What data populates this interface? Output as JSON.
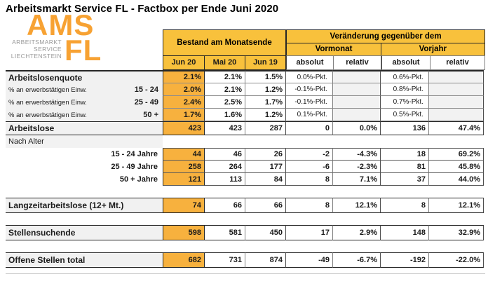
{
  "title": "Arbeitsmarkt Service FL - Factbox per Ende Juni 2020",
  "logo": {
    "acronym": "AMS",
    "region": "FL",
    "subtitle_lines": [
      "ARBEITSMARKT",
      "SERVICE",
      "LIECHTENSTEIN"
    ],
    "orange": "#F7A233",
    "gray": "#9A9A9A"
  },
  "colors": {
    "header_gold": "#F8C13C",
    "highlight_gold": "#F7B13E",
    "label_gray": "#F1F1F1",
    "empty_cell_gray": "#F2F2F2",
    "border_dark": "#262626"
  },
  "table": {
    "header": {
      "bestand": "Bestand am Monatsende",
      "veraenderung": "Veränderung gegenüber dem",
      "vormonat": "Vormonat",
      "vorjahr": "Vorjahr",
      "months": [
        "Jun 20",
        "Mai 20",
        "Jun 19"
      ],
      "subcols": [
        "absolut",
        "relativ",
        "absolut",
        "relativ"
      ]
    },
    "columns": [
      "Jun 20",
      "Mai 20",
      "Jun 19",
      "Vormonat absolut",
      "Vormonat relativ",
      "Vorjahr absolut",
      "Vorjahr relativ"
    ],
    "rows": [
      {
        "type": "head",
        "label": "Arbeitslosenquote",
        "pkt": true,
        "values": [
          "2.1%",
          "2.1%",
          "1.5%",
          "0.0%-Pkt.",
          "",
          "0.6%-Pkt.",
          ""
        ]
      },
      {
        "type": "subpct",
        "label": "% an erwerbstätigen Einw.",
        "age": "15 - 24",
        "pkt": true,
        "values": [
          "2.0%",
          "2.1%",
          "1.2%",
          "-0.1%-Pkt.",
          "",
          "0.8%-Pkt.",
          ""
        ]
      },
      {
        "type": "subpct",
        "label": "% an erwerbstätigen Einw.",
        "age": "25 - 49",
        "pkt": true,
        "values": [
          "2.4%",
          "2.5%",
          "1.7%",
          "-0.1%-Pkt.",
          "",
          "0.7%-Pkt.",
          ""
        ]
      },
      {
        "type": "subpct",
        "label": "% an erwerbstätigen Einw.",
        "age": "50 +",
        "pkt": true,
        "values": [
          "1.7%",
          "1.6%",
          "1.2%",
          "0.1%-Pkt.",
          "",
          "0.5%-Pkt.",
          ""
        ]
      },
      {
        "type": "total",
        "label": "Arbeitslose",
        "values": [
          "423",
          "423",
          "287",
          "0",
          "0.0%",
          "136",
          "47.4%"
        ]
      },
      {
        "type": "groupheader",
        "label": "Nach Alter"
      },
      {
        "type": "agerow",
        "label": "15 - 24 Jahre",
        "values": [
          "44",
          "46",
          "26",
          "-2",
          "-4.3%",
          "18",
          "69.2%"
        ]
      },
      {
        "type": "agerow",
        "label": "25 - 49 Jahre",
        "values": [
          "258",
          "264",
          "177",
          "-6",
          "-2.3%",
          "81",
          "45.8%"
        ]
      },
      {
        "type": "agerow",
        "label": "50 + Jahre",
        "values": [
          "121",
          "113",
          "84",
          "8",
          "7.1%",
          "37",
          "44.0%"
        ]
      },
      {
        "type": "gap"
      },
      {
        "type": "standalone",
        "label": "Langzeitarbeitslose (12+ Mt.)",
        "values": [
          "74",
          "66",
          "66",
          "8",
          "12.1%",
          "8",
          "12.1%"
        ]
      },
      {
        "type": "gap"
      },
      {
        "type": "standalone",
        "label": "Stellensuchende",
        "values": [
          "598",
          "581",
          "450",
          "17",
          "2.9%",
          "148",
          "32.9%"
        ]
      },
      {
        "type": "gap"
      },
      {
        "type": "standalone",
        "label": "Offene Stellen total",
        "values": [
          "682",
          "731",
          "874",
          "-49",
          "-6.7%",
          "-192",
          "-22.0%"
        ]
      }
    ]
  }
}
